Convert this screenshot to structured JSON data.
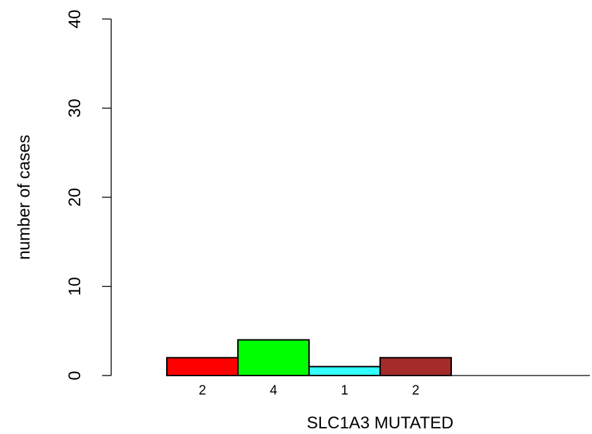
{
  "chart_data": {
    "type": "bar",
    "title": "",
    "xlabel": "SLC1A3 MUTATED",
    "ylabel": "number of cases",
    "ylim": [
      0,
      40
    ],
    "yticks": [
      0,
      10,
      20,
      30,
      40
    ],
    "grid": false,
    "legend": "none",
    "categories": [
      "2",
      "4",
      "1",
      "2"
    ],
    "values": [
      2,
      4,
      1,
      2
    ],
    "colors": [
      "#ff0000",
      "#00ff00",
      "#33ffff",
      "#a52a2a"
    ]
  }
}
